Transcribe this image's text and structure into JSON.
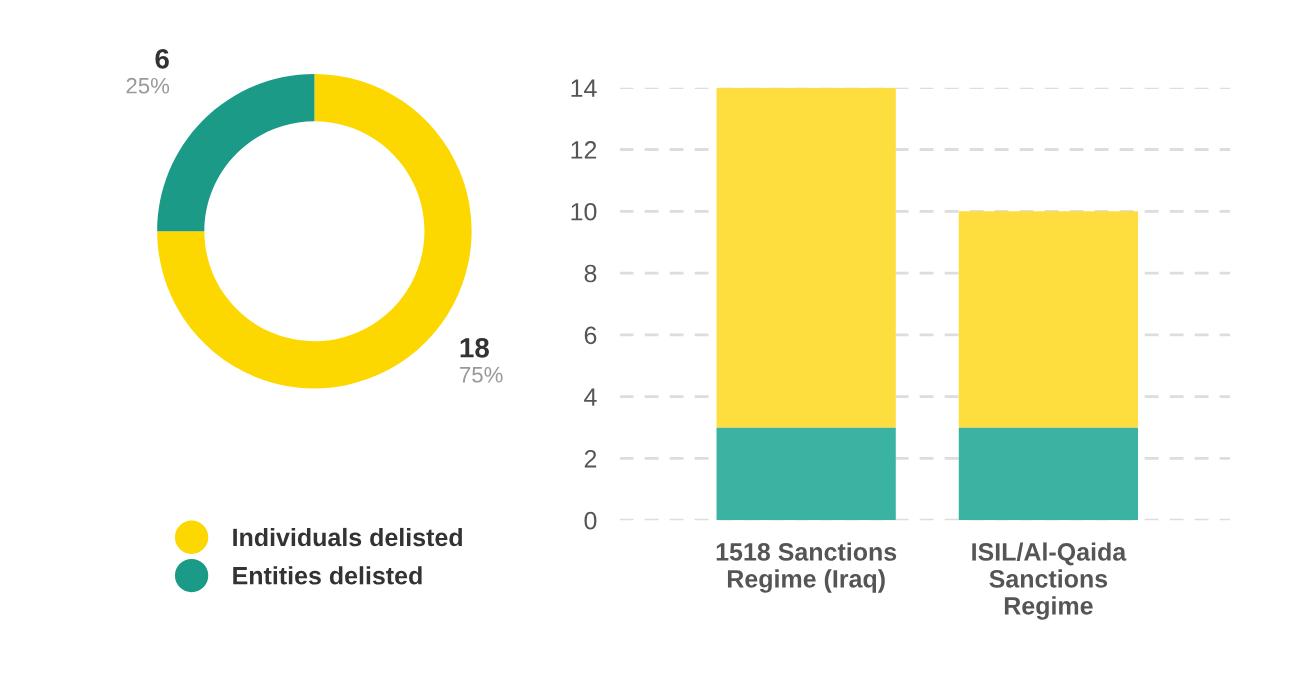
{
  "chart_data": [
    {
      "type": "donut",
      "categories": [
        "Individuals delisted",
        "Entities delisted"
      ],
      "values": [
        18,
        6
      ],
      "colors": [
        "#fdd700",
        "#1a9a87"
      ],
      "value_labels": [
        "18\n75%",
        "6\n25%"
      ],
      "legend": "bottom"
    },
    {
      "type": "bar",
      "categories": [
        "1518 Sanctions\nRegime (Iraq)",
        "ISIL/Al-Qaida\nSanctions\nRegime"
      ],
      "stacked": true,
      "series": [
        {
          "color": "#3bb3a2",
          "values": [
            3,
            3
          ]
        },
        {
          "color": "#fedd3f",
          "values": [
            11,
            7
          ]
        }
      ],
      "ylim": [
        0,
        14
      ],
      "yticks": [
        0,
        2,
        4,
        6,
        8,
        10,
        12,
        14
      ],
      "grid": "y"
    }
  ]
}
